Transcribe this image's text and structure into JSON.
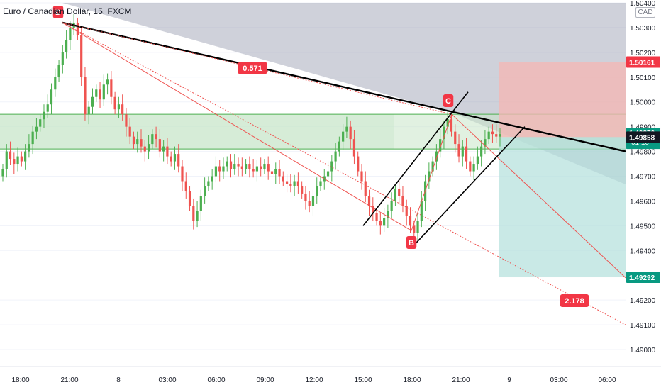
{
  "symbol": {
    "title": "Euro / Canadian Dollar, 15, FXCM",
    "currency": "CAD"
  },
  "colors": {
    "up": "#26a69a",
    "down": "#ef5350",
    "up_green": "#4caf50",
    "zone_fill": "#c8e6c9",
    "zone_line": "#4caf50",
    "fan_fill": "#9598ad",
    "stop_fill": "#f2b8b5",
    "target_fill": "#b2dfdb",
    "label_red": "#f23645",
    "label_green": "#089981",
    "label_dark": "#131722"
  },
  "labels": {
    "pointA": "D",
    "pointB": "B",
    "pointC": "C",
    "fib1": "0.571",
    "fib2": "2.178",
    "price_stop": "1.50161",
    "price_last": "1.49870",
    "countdown": "01:10",
    "price_entry": "1.49858",
    "price_target": "1.49292"
  },
  "chart_data": {
    "type": "candlestick",
    "title": "Euro / Canadian Dollar, 15, FXCM",
    "x_ticks": [
      "18:00",
      "21:00",
      "8",
      "03:00",
      "06:00",
      "09:00",
      "12:00",
      "15:00",
      "18:00",
      "21:00",
      "9",
      "03:00",
      "06:00"
    ],
    "y_ticks": [
      "1.50400",
      "1.50300",
      "1.50200",
      "1.50100",
      "1.50000",
      "1.49900",
      "1.49800",
      "1.49700",
      "1.49600",
      "1.49500",
      "1.49400",
      "1.49200",
      "1.49100",
      "1.49000"
    ],
    "ylim": [
      1.4895,
      1.5042
    ],
    "last_price": 1.4987,
    "zone": [
      1.4981,
      1.4995
    ],
    "position": {
      "stop": 1.50161,
      "entry": 1.49858,
      "target": 1.49292
    },
    "pattern_points": {
      "D": [
        1.5032
      ],
      "B": [
        1.4946
      ],
      "C": [
        1.4995
      ]
    },
    "fib_labels": [
      0.571,
      2.178
    ],
    "closes": [
      1.4973,
      1.498,
      1.4977,
      1.4975,
      1.4978,
      1.4976,
      1.498,
      1.4983,
      1.4988,
      1.499,
      1.4993,
      1.4996,
      1.4999,
      1.5005,
      1.501,
      1.5015,
      1.502,
      1.5025,
      1.503,
      1.5032,
      1.5027,
      1.501,
      1.4995,
      1.4998,
      1.5002,
      1.5005,
      1.5001,
      1.5007,
      1.5009,
      1.5002,
      1.4997,
      1.4999,
      1.4995,
      1.499,
      1.4986,
      1.4983,
      1.4985,
      1.4982,
      1.498,
      1.4983,
      1.4987,
      1.4985,
      1.498,
      1.4982,
      1.4978,
      1.4976,
      1.4979,
      1.4974,
      1.4968,
      1.4964,
      1.4958,
      1.4952,
      1.4956,
      1.4962,
      1.4966,
      1.4968,
      1.497,
      1.4974,
      1.4972,
      1.4974,
      1.4976,
      1.4973,
      1.4975,
      1.4974,
      1.4973,
      1.4975,
      1.4973,
      1.4972,
      1.4974,
      1.4973,
      1.4975,
      1.4972,
      1.4971,
      1.4973,
      1.497,
      1.4968,
      1.4967,
      1.4966,
      1.4968,
      1.4966,
      1.4963,
      1.496,
      1.4958,
      1.4962,
      1.4966,
      1.4968,
      1.497,
      1.4972,
      1.4976,
      1.498,
      1.4984,
      1.4988,
      1.499,
      1.4985,
      1.4978,
      1.4972,
      1.4968,
      1.4962,
      1.4958,
      1.4955,
      1.4952,
      1.495,
      1.4953,
      1.4956,
      1.496,
      1.4965,
      1.4962,
      1.4958,
      1.4954,
      1.495,
      1.4947,
      1.4952,
      1.496,
      1.4968,
      1.4972,
      1.4976,
      1.498,
      1.4985,
      1.499,
      1.4993,
      1.4988,
      1.4983,
      1.4978,
      1.4982,
      1.4976,
      1.4972,
      1.4975,
      1.4978,
      1.4982,
      1.4985,
      1.4988,
      1.4987,
      1.4986,
      1.4987
    ]
  }
}
